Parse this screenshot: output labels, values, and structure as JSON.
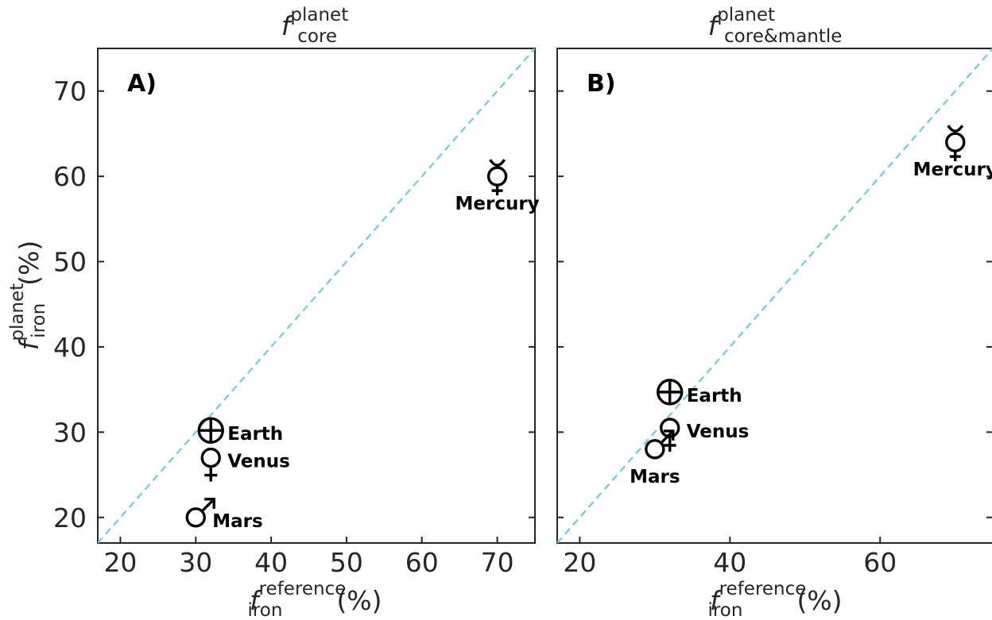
{
  "chart_data": [
    {
      "type": "scatter",
      "panel_label": "A)",
      "title": {
        "base": "f",
        "sup": "planet",
        "sub": "core"
      },
      "xlabel": {
        "base": "f",
        "sup": "reference",
        "sub": "iron",
        "unit": "(%)"
      },
      "ylabel": {
        "base": "f",
        "sup": "planet",
        "sub": "iron",
        "unit": "(%)"
      },
      "xlim": [
        17,
        75
      ],
      "ylim": [
        17,
        75
      ],
      "xticks": [
        "20",
        "30",
        "40",
        "50",
        "60",
        "70"
      ],
      "yticks": [
        "20",
        "30",
        "40",
        "50",
        "60",
        "70"
      ],
      "reference_line": "y = x",
      "reference_line_color": "#7ec8e3",
      "grid": false,
      "points": [
        {
          "name": "Mercury",
          "symbol": "mercury-icon",
          "x": 70,
          "y": 60,
          "label_position": "below"
        },
        {
          "name": "Venus",
          "symbol": "venus-icon",
          "x": 32,
          "y": 27,
          "label_position": "right"
        },
        {
          "name": "Earth",
          "symbol": "earth-icon",
          "x": 32,
          "y": 30.2,
          "label_position": "right"
        },
        {
          "name": "Mars",
          "symbol": "mars-icon",
          "x": 30,
          "y": 20,
          "label_position": "right"
        }
      ]
    },
    {
      "type": "scatter",
      "panel_label": "B)",
      "title": {
        "base": "f",
        "sup": "planet",
        "sub": "core&mantle"
      },
      "xlabel": {
        "base": "f",
        "sup": "reference",
        "sub": "iron",
        "unit": "(%)"
      },
      "xlim": [
        17,
        75
      ],
      "ylim": [
        17,
        75
      ],
      "xticks": [
        "20",
        "40",
        "60"
      ],
      "reference_line": "y = x",
      "reference_line_color": "#7ec8e3",
      "grid": false,
      "points": [
        {
          "name": "Mercury",
          "symbol": "mercury-icon",
          "x": 70,
          "y": 64,
          "label_position": "below"
        },
        {
          "name": "Earth",
          "symbol": "earth-icon",
          "x": 32,
          "y": 34.7,
          "label_position": "right"
        },
        {
          "name": "Venus",
          "symbol": "venus-icon",
          "x": 32,
          "y": 30.5,
          "label_position": "right"
        },
        {
          "name": "Mars",
          "symbol": "mars-icon",
          "x": 30,
          "y": 28,
          "label_position": "below"
        }
      ]
    }
  ]
}
